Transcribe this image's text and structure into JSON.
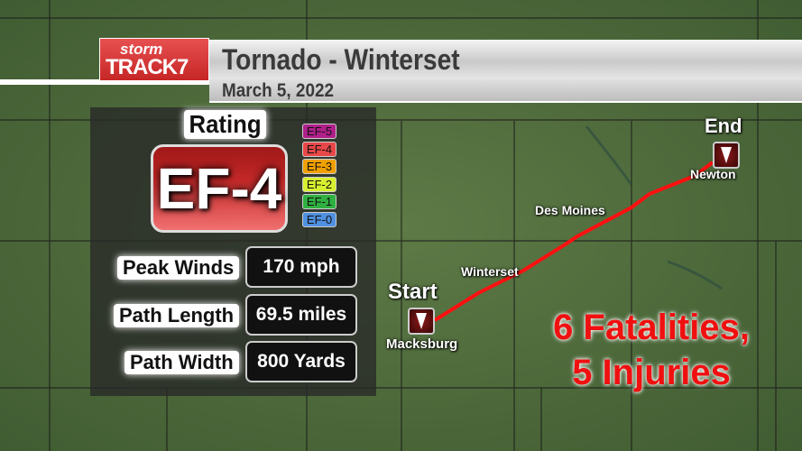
{
  "logo": {
    "line1": "storm",
    "line2": "TRACK7"
  },
  "title": "Tornado - Winterset",
  "date": "March 5, 2022",
  "rating": {
    "label": "Rating",
    "value": "EF-4"
  },
  "ef_scale": [
    {
      "label": "EF-5",
      "color": "#b0208a"
    },
    {
      "label": "EF-4",
      "color": "#e84848"
    },
    {
      "label": "EF-3",
      "color": "#f0a000"
    },
    {
      "label": "EF-2",
      "color": "#d8f030"
    },
    {
      "label": "EF-1",
      "color": "#30b040"
    },
    {
      "label": "EF-0",
      "color": "#5090e0"
    }
  ],
  "stats": [
    {
      "label": "Peak Winds",
      "value": "170 mph"
    },
    {
      "label": "Path Length",
      "value": "69.5 miles"
    },
    {
      "label": "Path Width",
      "value": "800 Yards"
    }
  ],
  "map": {
    "start_label": "Start",
    "end_label": "End",
    "start_town": "Macksburg",
    "end_town": "Newton",
    "towns": [
      "Winterset",
      "Des Moines"
    ],
    "path_color": "#ff1010"
  },
  "casualties": {
    "line1": "6 Fatalities,",
    "line2": "5 Injuries"
  }
}
